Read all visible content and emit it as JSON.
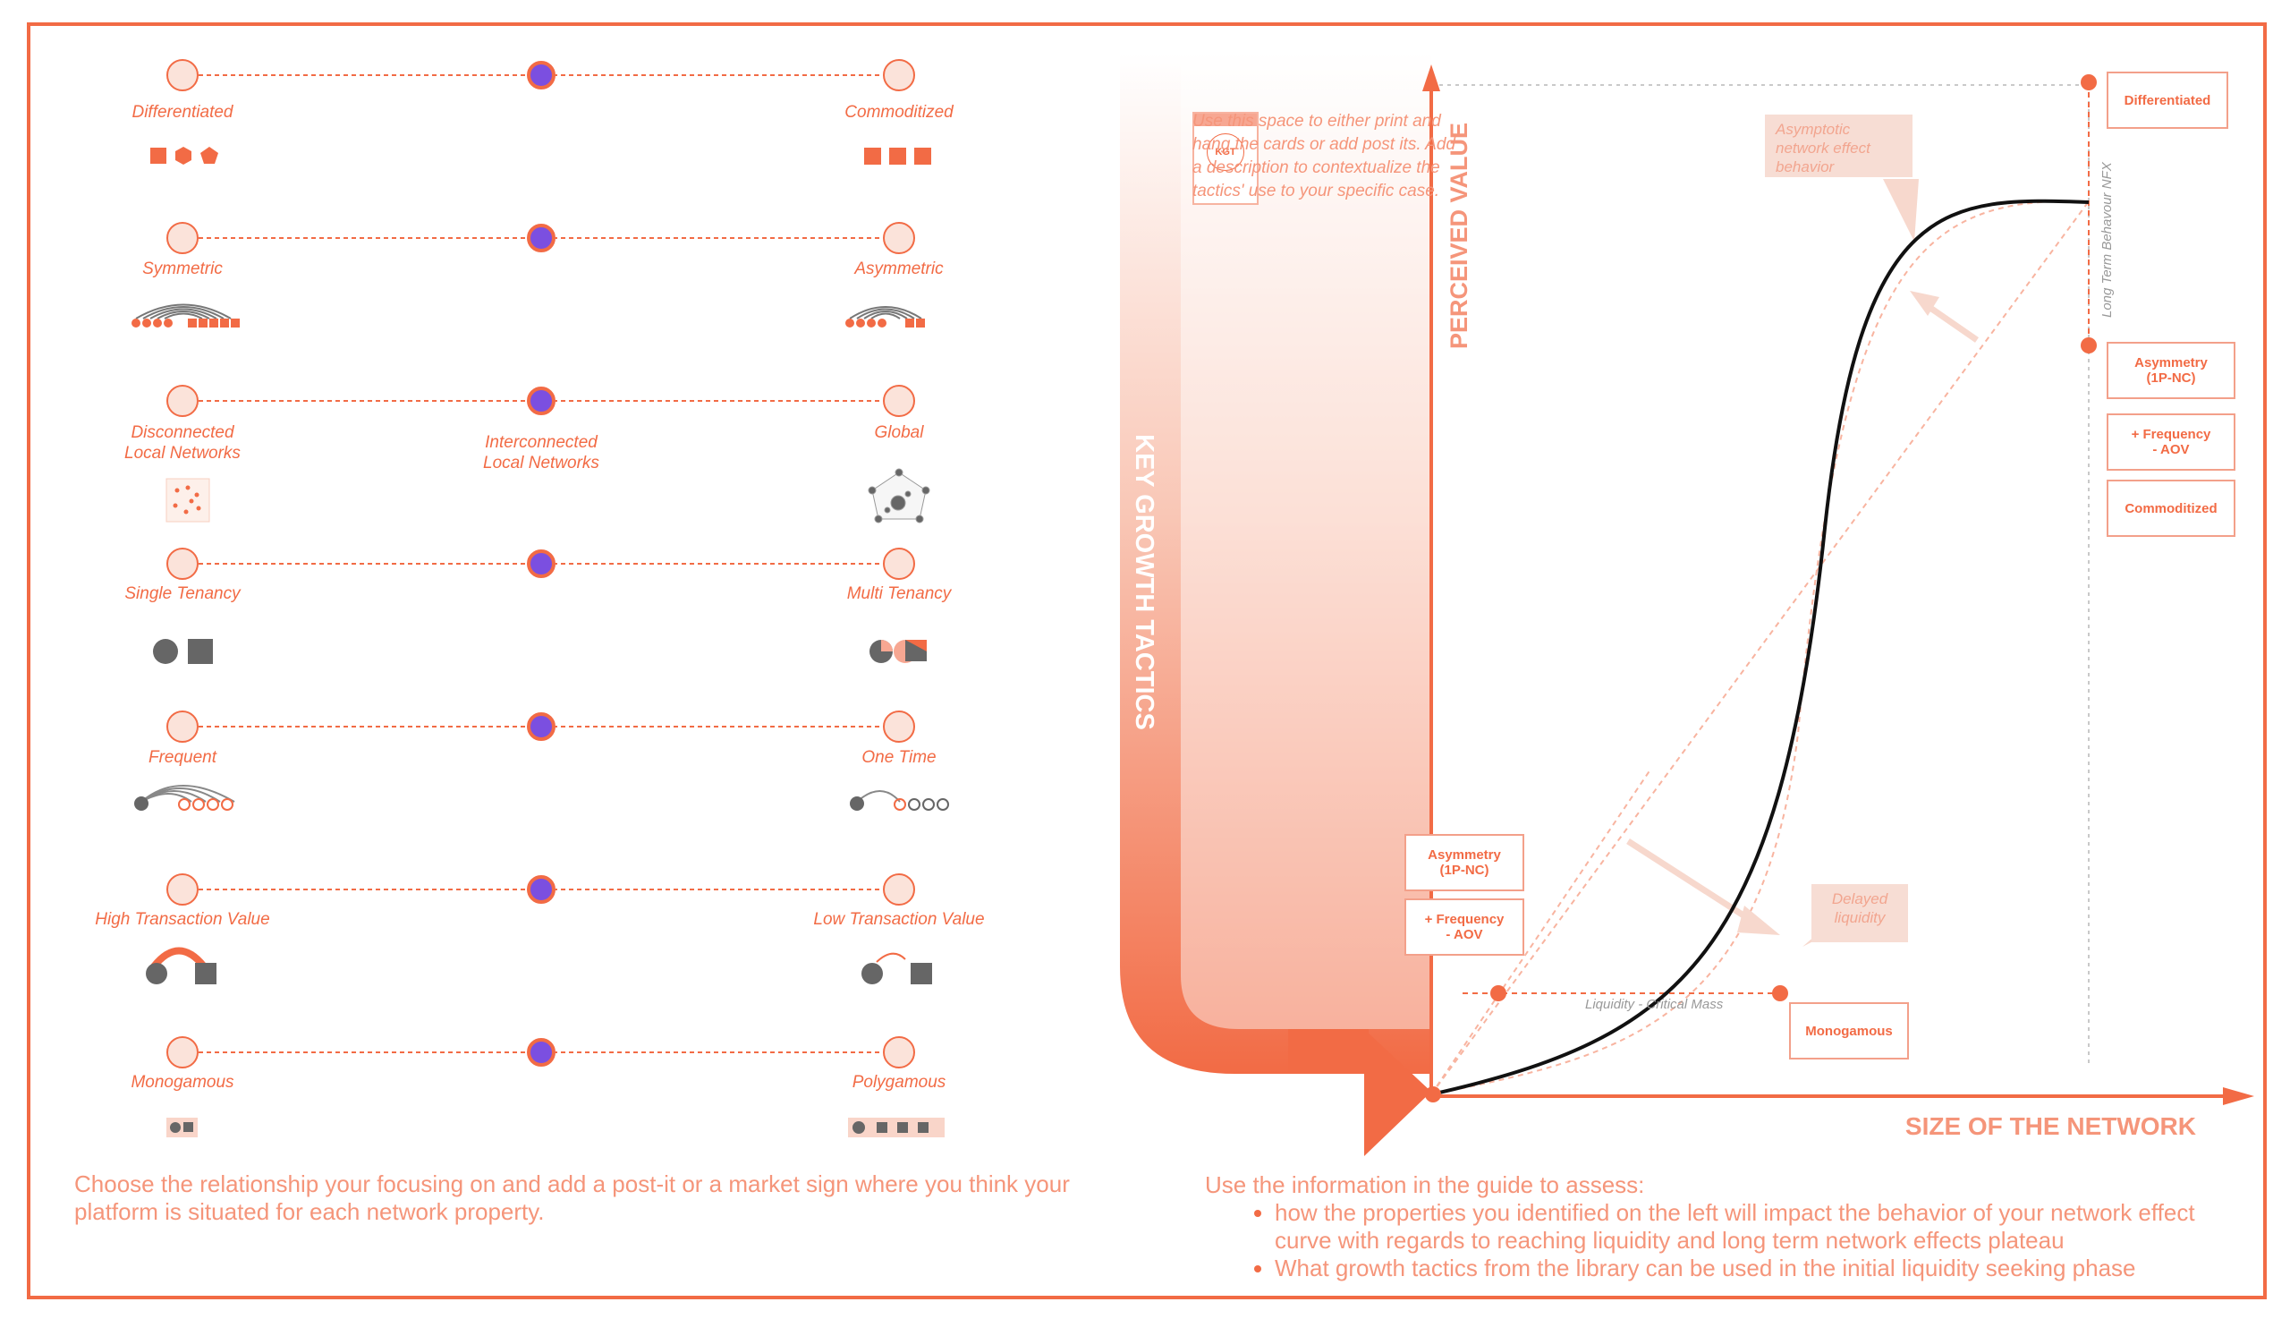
{
  "spectrum": [
    {
      "left": "Differentiated",
      "right": "Commoditized",
      "middle": ""
    },
    {
      "left": "Symmetric",
      "right": "Asymmetric",
      "middle": ""
    },
    {
      "left": "Disconnected\nLocal Networks",
      "right": "Global",
      "middle": "Interconnected\nLocal Networks"
    },
    {
      "left": "Single Tenancy",
      "right": "Multi Tenancy",
      "middle": ""
    },
    {
      "left": "Frequent",
      "right": "One Time",
      "middle": ""
    },
    {
      "left": "High Transaction Value",
      "right": "Low Transaction Value",
      "middle": ""
    },
    {
      "left": "Monogamous",
      "right": "Polygamous",
      "middle": ""
    }
  ],
  "left_instruction": "Choose the relationship your focusing on and add a post-it or a market sign where you think your platform is situated for each network property.",
  "kgt": {
    "badge": "KGT",
    "text": "Use this space to\neither print and\nhang the cards or\nadd post its.\nAdd a description to\ncontextualize the tactics'\nuse to your specific case.",
    "vertical_title": "KEY GROWTH TACTICS"
  },
  "graph": {
    "y_axis": "PERCEIVED VALUE",
    "x_axis": "SIZE OF THE NETWORK",
    "long_term": "Long Term Behavour NFX",
    "liquidity": "Liquidity - Critical Mass",
    "note_asymptotic": "Asymptotic\nnetwork effect\nbehavior",
    "note_delayed": "Delayed\nliquidity"
  },
  "cards": {
    "differentiated": "Differentiated",
    "asym_right": "Asymmetry\n(1P-NC)",
    "freq_right": "+ Frequency\n- AOV",
    "commoditized": "Commoditized",
    "asym_left": "Asymmetry\n(1P-NC)",
    "freq_left": "+ Frequency\n- AOV",
    "monogamous": "Monogamous"
  },
  "right_instruction": {
    "intro": "Use the information in the guide to assess:",
    "bullets": [
      "how the properties you identified on the left will impact the behavior of your network effect curve with regards to reaching liquidity and long term network effects plateau",
      "What growth tactics from the library can be used in the initial liquidity seeking phase"
    ]
  },
  "colors": {
    "accent": "#f26b45",
    "marker": "#7b4fe0",
    "node_fill": "#fbe3da",
    "grey": "#666666"
  }
}
